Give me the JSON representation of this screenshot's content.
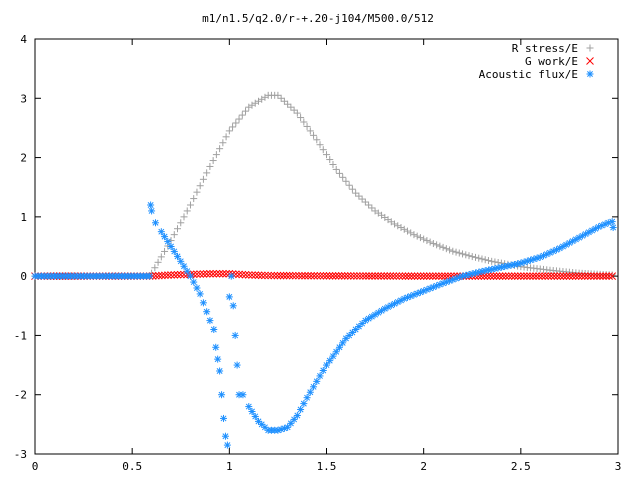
{
  "chart_data": {
    "type": "scatter",
    "title": "m1/n1.5/q2.0/r-+.20-j104/M500.0/512",
    "xlabel": "",
    "ylabel": "",
    "xlim": [
      0,
      3
    ],
    "ylim": [
      -3,
      4
    ],
    "xticks": [
      "0",
      "0.5",
      "1",
      "1.5",
      "2",
      "2.5",
      "3"
    ],
    "yticks": [
      "-3",
      "-2",
      "-1",
      "0",
      "1",
      "2",
      "3",
      "4"
    ],
    "grid": false,
    "legend_position": "top-right",
    "series": [
      {
        "name": "R stress/E",
        "color": "#a0a0a0",
        "marker": "+",
        "x": [
          0,
          0.2,
          0.4,
          0.59,
          0.6,
          0.7,
          0.8,
          0.9,
          1.0,
          1.1,
          1.2,
          1.25,
          1.35,
          1.45,
          1.55,
          1.65,
          1.75,
          1.85,
          1.95,
          2.05,
          2.15,
          2.25,
          2.35,
          2.5,
          2.65,
          2.8,
          2.97
        ],
        "y": [
          0,
          0,
          0,
          0,
          0.05,
          0.6,
          1.2,
          1.85,
          2.45,
          2.85,
          3.05,
          3.05,
          2.75,
          2.3,
          1.8,
          1.4,
          1.1,
          0.88,
          0.7,
          0.55,
          0.42,
          0.33,
          0.25,
          0.16,
          0.1,
          0.05,
          0.02
        ]
      },
      {
        "name": "G work/E",
        "color": "#ff0000",
        "marker": "x",
        "x": [
          0,
          0.3,
          0.59,
          0.7,
          0.8,
          0.9,
          1.0,
          1.1,
          1.2,
          1.5,
          2.0,
          2.5,
          2.97
        ],
        "y": [
          0,
          0,
          0,
          0.02,
          0.03,
          0.04,
          0.04,
          0.02,
          0.01,
          0.005,
          0,
          0,
          0
        ]
      },
      {
        "name": "Acoustic flux/E",
        "color": "#1e90ff",
        "marker": "*",
        "x": [
          0,
          0.2,
          0.4,
          0.59,
          0.595,
          0.6,
          0.62,
          0.65,
          0.7,
          0.75,
          0.8,
          0.85,
          0.9,
          0.92,
          0.93,
          0.94,
          0.95,
          0.96,
          0.97,
          0.98,
          0.99,
          1.0,
          1.01,
          1.02,
          1.03,
          1.04,
          1.05,
          1.07,
          1.1,
          1.15,
          1.2,
          1.25,
          1.3,
          1.35,
          1.4,
          1.5,
          1.6,
          1.7,
          1.8,
          1.9,
          2.0,
          2.1,
          2.2,
          2.3,
          2.4,
          2.5,
          2.6,
          2.7,
          2.8,
          2.9,
          2.95,
          2.97,
          2.975
        ],
        "y": [
          0,
          0,
          0,
          0,
          1.2,
          1.1,
          0.9,
          0.75,
          0.5,
          0.25,
          0,
          -0.3,
          -0.75,
          -0.9,
          -1.2,
          -1.4,
          -1.6,
          -2.0,
          -2.4,
          -2.7,
          -2.85,
          -0.35,
          0.0,
          -0.5,
          -1.0,
          -1.5,
          -2.0,
          -2.0,
          -2.2,
          -2.45,
          -2.6,
          -2.6,
          -2.55,
          -2.35,
          -2.05,
          -1.5,
          -1.05,
          -0.75,
          -0.55,
          -0.38,
          -0.25,
          -0.12,
          0.0,
          0.08,
          0.15,
          0.22,
          0.32,
          0.47,
          0.65,
          0.83,
          0.9,
          0.92,
          0.82
        ]
      }
    ]
  }
}
